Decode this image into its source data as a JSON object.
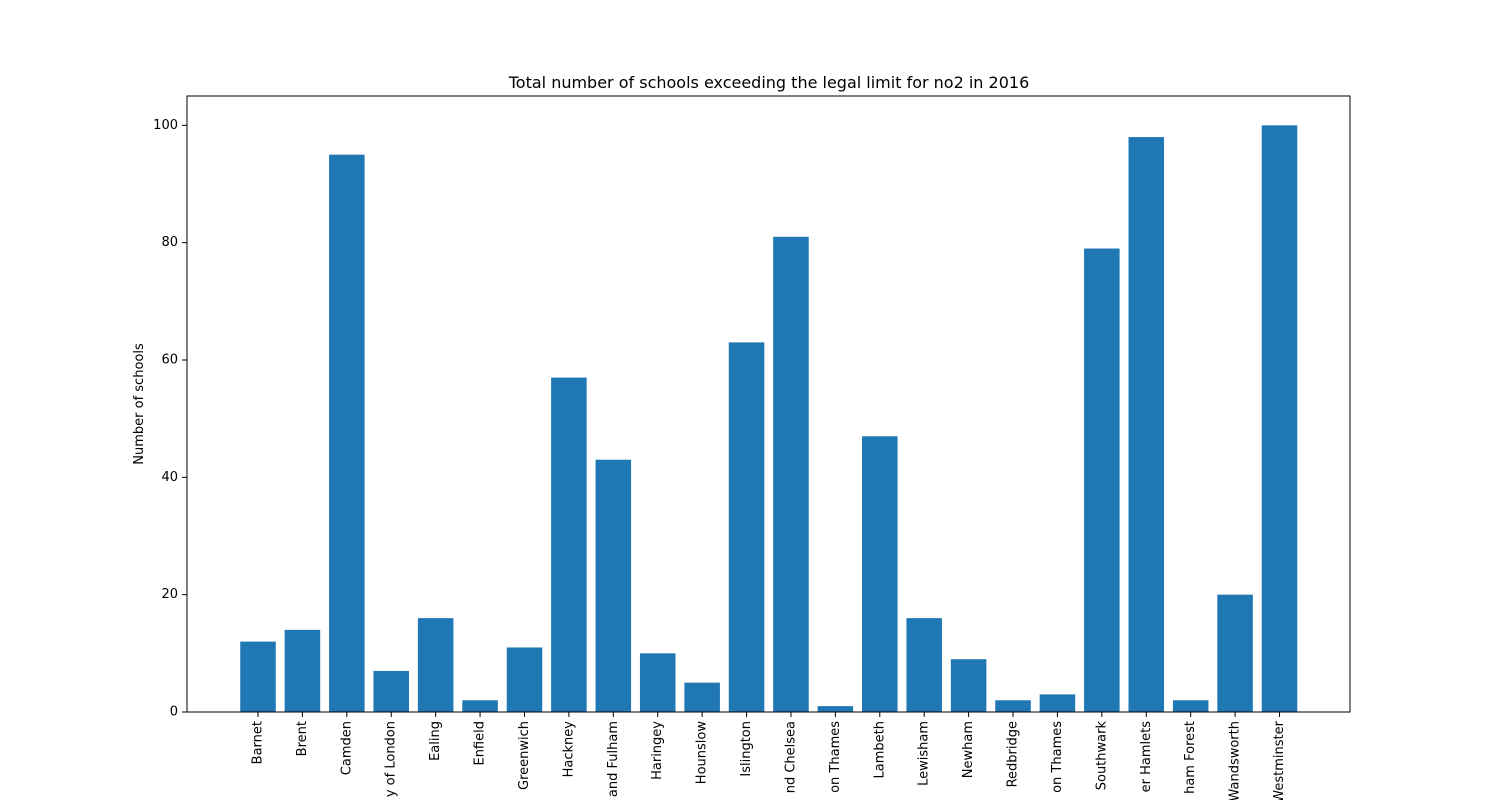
{
  "chart_data": {
    "type": "bar",
    "title": "Total number of schools exceeding the legal limit for no2 in 2016",
    "xlabel": "",
    "ylabel": "Number of schools",
    "ylim": [
      0,
      105
    ],
    "yticks": [
      0,
      20,
      40,
      60,
      80,
      100
    ],
    "grid": false,
    "bar_color": "#1f77b4",
    "categories": [
      "Barnet",
      "Brent",
      "Camden",
      "y of London",
      "Ealing",
      "Enfield",
      "Greenwich",
      "Hackney",
      "and Fulham",
      "Haringey",
      "Hounslow",
      "Islington",
      "nd Chelsea",
      "on Thames",
      "Lambeth",
      "Lewisham",
      "Newham",
      "Redbridge",
      "on Thames",
      "Southwark",
      "er Hamlets",
      "ham Forest",
      "Wandsworth",
      "Westminster"
    ],
    "values": [
      12,
      14,
      95,
      7,
      16,
      2,
      11,
      57,
      43,
      10,
      5,
      63,
      81,
      1,
      47,
      16,
      9,
      2,
      3,
      79,
      98,
      2,
      20,
      100
    ]
  }
}
